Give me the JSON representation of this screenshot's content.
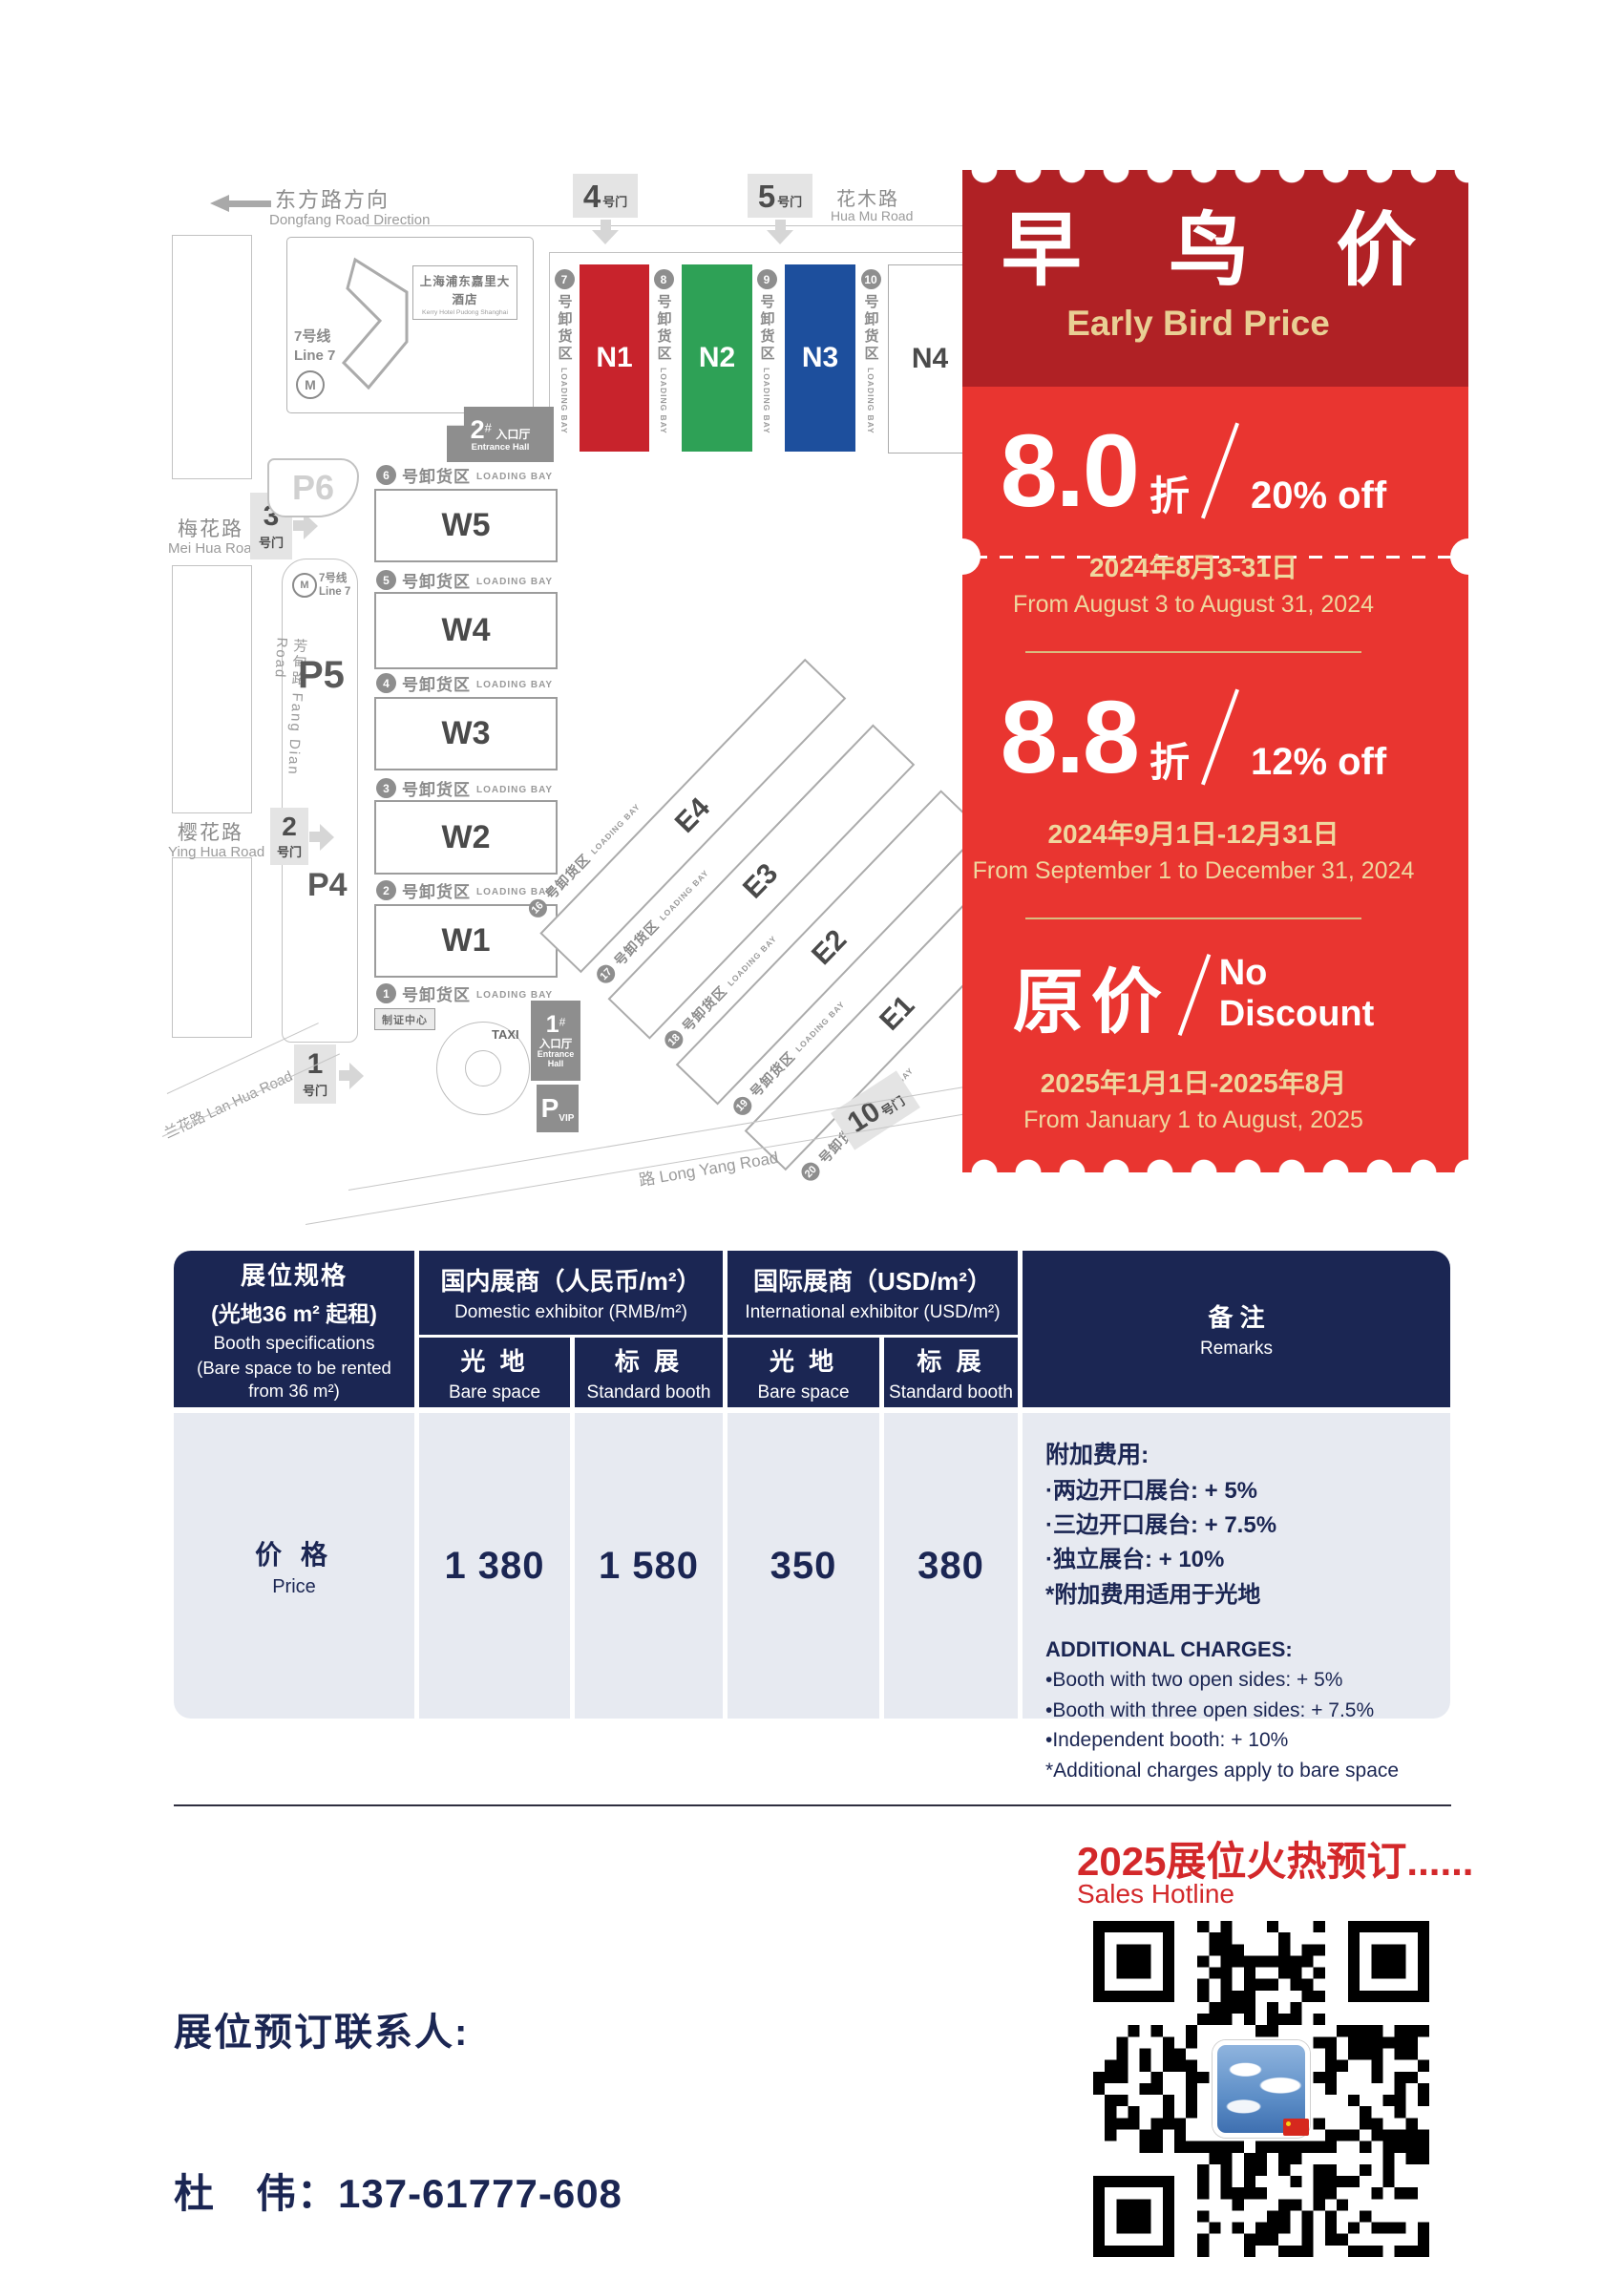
{
  "map": {
    "dongfang_zh": "东方路方向",
    "dongfang_en": "Dongfang Road Direction",
    "huamu_zh": "花木路",
    "huamu_en": "Hua Mu Road",
    "meihua_zh": "梅花路",
    "meihua_en": "Mei Hua Road",
    "fangdian": "芳甸路 Fang Dian Road",
    "yinghua_zh": "樱花路",
    "yinghua_en": "Ying Hua Road",
    "lanhua": "兰花路 Lan Hua Road",
    "longyang": "路  Long Yang Road",
    "hotel_zh": "上海浦东嘉里大酒店",
    "hotel_en": "Kerry Hotel Pudong Shanghai",
    "line7_zh": "7号线",
    "line7_en": "Line 7",
    "metro_m": "M",
    "hash": "#",
    "gate_suffix": "号门",
    "gate1": "1",
    "gate2": "2",
    "gate3": "3",
    "gate4": "4",
    "gate5": "5",
    "gate10": "10",
    "p6": "P6",
    "p5": "P5",
    "p4": "P4",
    "p_vip": "P",
    "p_vip_sub": "VIP",
    "taxi": "TAXI",
    "badge_center": "制证中心",
    "entrance1_num": "1",
    "entrance2_num": "2",
    "entrance_zh": "入口厅",
    "entrance_en": "Entrance Hall",
    "bay_zh": "号卸货区",
    "bay_en": "LOADING BAY",
    "n_halls": [
      "N1",
      "N2",
      "N3",
      "N4"
    ],
    "n_bays": [
      "7",
      "8",
      "9",
      "10"
    ],
    "w_halls": [
      "W5",
      "W4",
      "W3",
      "W2",
      "W1"
    ],
    "w_bays": [
      "6",
      "5",
      "4",
      "3",
      "2",
      "1"
    ],
    "e_halls": [
      "E4",
      "E3",
      "E2",
      "E1"
    ],
    "e_bays": [
      "16",
      "17",
      "18",
      "19",
      "20"
    ]
  },
  "ticket": {
    "title_zh": "早 鸟 价",
    "title_en": "Early Bird Price",
    "tier1_num": "8.0",
    "tier1_zhe": "折",
    "tier1_off": "20% off",
    "tier1_date_zh": "2024年8月3-31日",
    "tier1_date_en": "From August 3 to August 31, 2024",
    "tier2_num": "8.8",
    "tier2_zhe": "折",
    "tier2_off": "12% off",
    "tier2_date_zh": "2024年9月1日-12月31日",
    "tier2_date_en": "From September 1 to December 31, 2024",
    "tier3_zh": "原价",
    "tier3_off1": "No",
    "tier3_off2": "Discount",
    "tier3_date_zh": "2025年1月1日-2025年8月",
    "tier3_date_en": "From January 1 to August, 2025"
  },
  "table": {
    "spec_zh1": "展位规格",
    "spec_zh2": "(光地36 m² 起租)",
    "spec_en1": "Booth specifications",
    "spec_en2": "(Bare space to be rented from 36 m²)",
    "domestic_zh": "国内展商（人民币/m²）",
    "domestic_en": "Domestic exhibitor (RMB/m²)",
    "intl_zh": "国际展商（USD/m²）",
    "intl_en": "International exhibitor (USD/m²)",
    "bare_zh": "光 地",
    "bare_en": "Bare space",
    "std_zh": "标 展",
    "std_en": "Standard booth",
    "remarks_zh": "备 注",
    "remarks_en": "Remarks",
    "price_zh": "价 格",
    "price_en": "Price",
    "values": [
      "1 380",
      "1 580",
      "350",
      "380"
    ],
    "remarks": {
      "zh_title": "附加费用:",
      "zh1": "·两边开口展台: + 5%",
      "zh2": "·三边开口展台: + 7.5%",
      "zh3": "·独立展台: + 10%",
      "zh4": "*附加费用适用于光地",
      "en_title": "ADDITIONAL CHARGES:",
      "en1": "•Booth with two open sides: + 5%",
      "en2": "•Booth with three open sides: + 7.5%",
      "en3": "•Independent booth: + 10%",
      "en4": "*Additional charges apply to bare space"
    }
  },
  "footer": {
    "hotline_zh": "2025展位火热预订......",
    "hotline_en": "Sales Hotline",
    "contact_label": "展位预订联系人:",
    "contact_line": "杜　伟：137-61777-608"
  },
  "colors": {
    "n1_red": "#C8232C",
    "n2_green": "#2EA156",
    "n3_blue": "#1D4F9D",
    "ticket_dark_red": "#B02125",
    "ticket_red": "#E93530",
    "gold_text": "#EFD79E",
    "navy": "#1B2653",
    "table_body_bg": "#E7EAF1",
    "hotline_red": "#D3282A"
  }
}
